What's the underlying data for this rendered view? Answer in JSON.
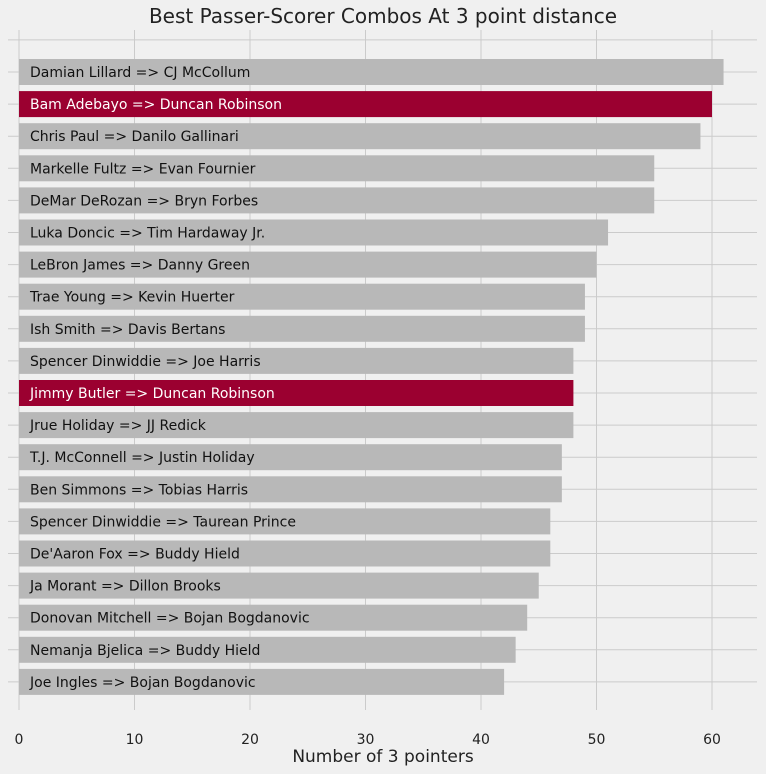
{
  "chart_data": {
    "type": "bar",
    "orientation": "horizontal",
    "title": "Best Passer-Scorer Combos At 3 point distance",
    "xlabel": "Number of 3 pointers",
    "ylabel": "",
    "xlim": [
      0,
      64
    ],
    "xticks": [
      0,
      10,
      20,
      30,
      40,
      50,
      60
    ],
    "grid": true,
    "colors": {
      "default": "#b8b8b8",
      "highlight": "#9b0030",
      "background": "#f0f0f0"
    },
    "categories": [
      "Damian Lillard => CJ McCollum",
      "Bam Adebayo => Duncan Robinson",
      "Chris Paul => Danilo Gallinari",
      "Markelle Fultz => Evan Fournier",
      "DeMar DeRozan => Bryn Forbes",
      "Luka Doncic => Tim Hardaway Jr.",
      "LeBron James => Danny Green",
      "Trae Young => Kevin Huerter",
      "Ish Smith => Davis Bertans",
      "Spencer Dinwiddie => Joe Harris",
      "Jimmy Butler => Duncan Robinson",
      "Jrue Holiday => JJ Redick",
      "T.J. McConnell => Justin Holiday",
      "Ben Simmons => Tobias Harris",
      "Spencer Dinwiddie => Taurean Prince",
      "De'Aaron Fox => Buddy Hield",
      "Ja Morant => Dillon Brooks",
      "Donovan Mitchell => Bojan Bogdanovic",
      "Nemanja Bjelica => Buddy Hield",
      "Joe Ingles => Bojan Bogdanovic"
    ],
    "values": [
      61,
      60,
      59,
      55,
      55,
      51,
      50,
      49,
      49,
      48,
      48,
      48,
      47,
      47,
      46,
      46,
      45,
      44,
      43,
      42
    ],
    "highlighted": [
      false,
      true,
      false,
      false,
      false,
      false,
      false,
      false,
      false,
      false,
      true,
      false,
      false,
      false,
      false,
      false,
      false,
      false,
      false,
      false
    ]
  }
}
